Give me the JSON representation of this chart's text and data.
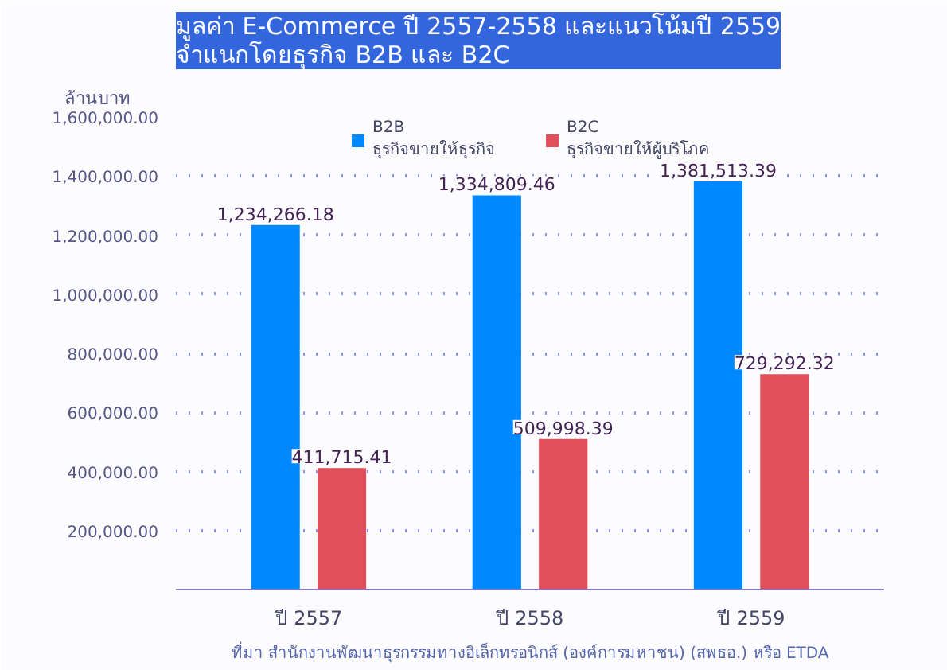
{
  "chart_data": {
    "type": "bar",
    "title": "มูลค่า E-Commerce ปี 2557-2558 และแนวโน้มปี 2559\nจำแนกโดยธุรกิจ B2B และ B2C",
    "ylabel": "ล้านบาท",
    "categories": [
      "ปี 2557",
      "ปี 2558",
      "ปี 2559"
    ],
    "series": [
      {
        "name": "B2B\nธุรกิจขายให้ธุรกิจ",
        "color": "#0088ff",
        "values": [
          1234266.18,
          1334809.46,
          1381513.39
        ],
        "value_labels": [
          "1,234,266.18",
          "1,334,809.46",
          "1,381,513.39"
        ]
      },
      {
        "name": "B2C\nธุรกิจขายให้ผู้บริโภค",
        "color": "#e0505a",
        "values": [
          411715.41,
          509998.39,
          729292.32
        ],
        "value_labels": [
          "411,715.41",
          "509,998.39",
          "729,292.32"
        ]
      }
    ],
    "ylim": [
      0,
      1600000
    ],
    "yticks": [
      {
        "value": 200000,
        "label": "200,000.00"
      },
      {
        "value": 400000,
        "label": "400,000.00"
      },
      {
        "value": 600000,
        "label": "600,000.00"
      },
      {
        "value": 800000,
        "label": "800,000.00"
      },
      {
        "value": 1000000,
        "label": "1,000,000.00"
      },
      {
        "value": 1200000,
        "label": "1,200,000.00"
      },
      {
        "value": 1400000,
        "label": "1,400,000.00"
      },
      {
        "value": 1600000,
        "label": "1,600,000.00"
      }
    ],
    "grid": "y",
    "legend": "top",
    "annotations": [
      "ที่มา สำนักงานพัฒนาธุรกรรมทางอิเล็กทรอนิกส์ (องค์การมหาชน) (สพธอ.) หรือ ETDA"
    ]
  }
}
